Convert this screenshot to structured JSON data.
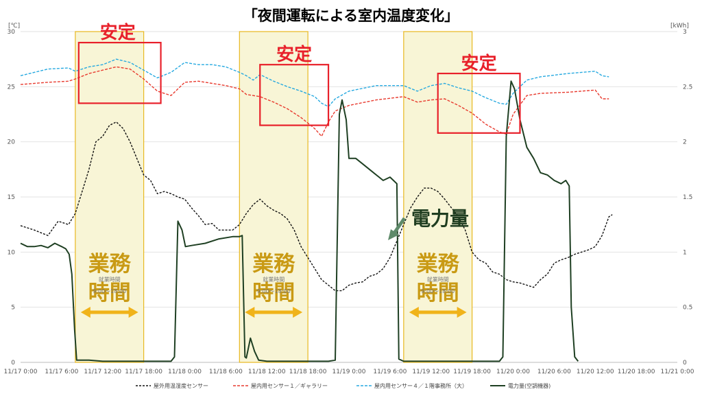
{
  "chart_data": {
    "type": "line",
    "title": "「夜間運転による室内温度変化」",
    "y_left_unit": "[℃]",
    "y_right_unit": "[kWh]",
    "y_left_range": [
      0,
      30
    ],
    "y_right_range": [
      0,
      3
    ],
    "y_left_ticks": [
      "0",
      "5",
      "10",
      "15",
      "20",
      "25",
      "30"
    ],
    "y_right_ticks": [
      "0",
      "0.5",
      "1",
      "1.5",
      "2",
      "2.5",
      "3"
    ],
    "x_range_hours": [
      0,
      96
    ],
    "x_ticks": [
      {
        "h": 0,
        "label": "11/17 0:00"
      },
      {
        "h": 6,
        "label": "11/17 6:00"
      },
      {
        "h": 12,
        "label": "11/17 12:00"
      },
      {
        "h": 18,
        "label": "11/17 18:00"
      },
      {
        "h": 24,
        "label": "11/18 0:00"
      },
      {
        "h": 30,
        "label": "11/18 6:00"
      },
      {
        "h": 36,
        "label": "11/18 12:00"
      },
      {
        "h": 42,
        "label": "11/18 18:00"
      },
      {
        "h": 48,
        "label": "11/19 0:00"
      },
      {
        "h": 54,
        "label": "11/19 6:00"
      },
      {
        "h": 60,
        "label": "11/19 12:00"
      },
      {
        "h": 66,
        "label": "11/19 18:00"
      },
      {
        "h": 72,
        "label": "11/20 0:00"
      },
      {
        "h": 78,
        "label": "11/20 6:00"
      },
      {
        "h": 84,
        "label": "11/20 12:00"
      },
      {
        "h": 90,
        "label": "11/20 18:00"
      },
      {
        "h": 96,
        "label": "11/21 0:00"
      }
    ],
    "business_hours": [
      [
        8,
        18
      ],
      [
        32,
        42
      ],
      [
        56,
        66
      ]
    ],
    "stable_boxes": [
      {
        "x": [
          8.5,
          20.5
        ],
        "y": [
          23.5,
          29.0
        ]
      },
      {
        "x": [
          35.0,
          45.0
        ],
        "y": [
          21.5,
          27.0
        ]
      },
      {
        "x": [
          61.0,
          73.0
        ],
        "y": [
          20.8,
          26.2
        ]
      }
    ],
    "series": [
      {
        "name": "屋外用温湿度センサー",
        "axis": "left",
        "color": "#111111",
        "style": "dotted",
        "points": [
          [
            0,
            12.4
          ],
          [
            2,
            12
          ],
          [
            4,
            11.5
          ],
          [
            5.5,
            12.8
          ],
          [
            7,
            12.5
          ],
          [
            8,
            13.5
          ],
          [
            9,
            15.5
          ],
          [
            10,
            17.5
          ],
          [
            11,
            20
          ],
          [
            12,
            20.5
          ],
          [
            13,
            21.5
          ],
          [
            14,
            21.8
          ],
          [
            15,
            21.2
          ],
          [
            16,
            20
          ],
          [
            17,
            18.5
          ],
          [
            18,
            17
          ],
          [
            19,
            16.5
          ],
          [
            20,
            15.3
          ],
          [
            21,
            15.5
          ],
          [
            22,
            15.3
          ],
          [
            23,
            15
          ],
          [
            24,
            14.8
          ],
          [
            25,
            14
          ],
          [
            26,
            13.3
          ],
          [
            27,
            12.5
          ],
          [
            28,
            12.6
          ],
          [
            29,
            12
          ],
          [
            30,
            12
          ],
          [
            31,
            12
          ],
          [
            32,
            12.5
          ],
          [
            33,
            13.5
          ],
          [
            34,
            14.3
          ],
          [
            35,
            14.8
          ],
          [
            36,
            14.2
          ],
          [
            37,
            13.8
          ],
          [
            38,
            13.5
          ],
          [
            39,
            13
          ],
          [
            40,
            12
          ],
          [
            41,
            10.5
          ],
          [
            42,
            9.5
          ],
          [
            43,
            8.5
          ],
          [
            44,
            7.5
          ],
          [
            45,
            7
          ],
          [
            46,
            6.5
          ],
          [
            47,
            6.5
          ],
          [
            48,
            7
          ],
          [
            49,
            7.2
          ],
          [
            50,
            7.3
          ],
          [
            51,
            7.8
          ],
          [
            52,
            8
          ],
          [
            53,
            8.5
          ],
          [
            54,
            9.5
          ],
          [
            55,
            11
          ],
          [
            56,
            12.5
          ],
          [
            57,
            14
          ],
          [
            58,
            15
          ],
          [
            59,
            15.8
          ],
          [
            60,
            15.8
          ],
          [
            61,
            15.5
          ],
          [
            62,
            14.8
          ],
          [
            63,
            14
          ],
          [
            64,
            13.2
          ],
          [
            65,
            12
          ],
          [
            66,
            10
          ],
          [
            67,
            9.3
          ],
          [
            68,
            9
          ],
          [
            69,
            8.2
          ],
          [
            70,
            8
          ],
          [
            71,
            7.5
          ],
          [
            72,
            7.3
          ],
          [
            73,
            7.2
          ],
          [
            74,
            7
          ],
          [
            75,
            6.8
          ],
          [
            76,
            7.5
          ],
          [
            77,
            8
          ],
          [
            78,
            9
          ],
          [
            79,
            9.3
          ],
          [
            80,
            9.5
          ],
          [
            81,
            9.8
          ],
          [
            82,
            10
          ],
          [
            83,
            10.2
          ],
          [
            84,
            10.5
          ],
          [
            85,
            11.5
          ],
          [
            86,
            13.2
          ],
          [
            86.5,
            13.4
          ]
        ]
      },
      {
        "name": "屋内用センサー１／ギャラリー",
        "axis": "left",
        "color": "#e83a2e",
        "style": "dashed",
        "points": [
          [
            0,
            25.2
          ],
          [
            4,
            25.4
          ],
          [
            7,
            25.5
          ],
          [
            8,
            25.7
          ],
          [
            10,
            26.2
          ],
          [
            12,
            26.5
          ],
          [
            14,
            26.8
          ],
          [
            16,
            26.6
          ],
          [
            18,
            25.7
          ],
          [
            20,
            24.6
          ],
          [
            22,
            24.2
          ],
          [
            24,
            25.4
          ],
          [
            26,
            25.5
          ],
          [
            28,
            25.3
          ],
          [
            30,
            25.1
          ],
          [
            32,
            24.8
          ],
          [
            33,
            24.3
          ],
          [
            35,
            24.1
          ],
          [
            37,
            23.6
          ],
          [
            39,
            23
          ],
          [
            41,
            22.2
          ],
          [
            43,
            21.2
          ],
          [
            44,
            20.5
          ],
          [
            45,
            21.8
          ],
          [
            46,
            22.8
          ],
          [
            48,
            23.3
          ],
          [
            52,
            23.8
          ],
          [
            56,
            24.1
          ],
          [
            58,
            23.6
          ],
          [
            60,
            23.8
          ],
          [
            62,
            23.9
          ],
          [
            64,
            23.3
          ],
          [
            66,
            22.6
          ],
          [
            68,
            21.6
          ],
          [
            70,
            20.9
          ],
          [
            71,
            20.7
          ],
          [
            72,
            22.5
          ],
          [
            74,
            24.2
          ],
          [
            76,
            24.4
          ],
          [
            80,
            24.5
          ],
          [
            84,
            24.7
          ],
          [
            85,
            23.9
          ],
          [
            86,
            23.9
          ]
        ]
      },
      {
        "name": "屋内用センサー４／１階事務所（大）",
        "axis": "left",
        "color": "#26a9e0",
        "style": "dashed",
        "points": [
          [
            0,
            26
          ],
          [
            4,
            26.6
          ],
          [
            7,
            26.7
          ],
          [
            8,
            26.4
          ],
          [
            10,
            26.8
          ],
          [
            12,
            27
          ],
          [
            14,
            27.5
          ],
          [
            16,
            27.2
          ],
          [
            18,
            26.5
          ],
          [
            20,
            25.8
          ],
          [
            22,
            26.3
          ],
          [
            24,
            27.2
          ],
          [
            26,
            27
          ],
          [
            28,
            27
          ],
          [
            30,
            26.8
          ],
          [
            32,
            26.3
          ],
          [
            33,
            26
          ],
          [
            34,
            25.6
          ],
          [
            35,
            26.1
          ],
          [
            37,
            25.5
          ],
          [
            39,
            25
          ],
          [
            41,
            24.6
          ],
          [
            43,
            24.1
          ],
          [
            44,
            23.5
          ],
          [
            45,
            23.2
          ],
          [
            46,
            23.9
          ],
          [
            48,
            24.6
          ],
          [
            52,
            25.1
          ],
          [
            56,
            25.1
          ],
          [
            58,
            24.6
          ],
          [
            60,
            25.1
          ],
          [
            62,
            25.3
          ],
          [
            64,
            24.9
          ],
          [
            66,
            24.6
          ],
          [
            68,
            24
          ],
          [
            70,
            23.5
          ],
          [
            71,
            23.4
          ],
          [
            72,
            24.4
          ],
          [
            74,
            25.6
          ],
          [
            76,
            25.9
          ],
          [
            80,
            26.2
          ],
          [
            84,
            26.4
          ],
          [
            85,
            26
          ],
          [
            86,
            25.9
          ]
        ]
      },
      {
        "name": "電力量(空調機器)",
        "axis": "right",
        "color": "#1e3f22",
        "style": "solid",
        "points": [
          [
            0,
            1.08
          ],
          [
            1,
            1.05
          ],
          [
            2,
            1.05
          ],
          [
            3,
            1.06
          ],
          [
            4,
            1.04
          ],
          [
            5,
            1.08
          ],
          [
            6,
            1.05
          ],
          [
            6.6,
            1.03
          ],
          [
            7.1,
            0.98
          ],
          [
            7.5,
            0.8
          ],
          [
            7.9,
            0.3
          ],
          [
            8.2,
            0.02
          ],
          [
            10,
            0.02
          ],
          [
            12,
            0.01
          ],
          [
            14,
            0.01
          ],
          [
            16,
            0.01
          ],
          [
            18,
            0.01
          ],
          [
            20,
            0.01
          ],
          [
            21,
            0.01
          ],
          [
            22,
            0.01
          ],
          [
            22.5,
            0.05
          ],
          [
            23,
            1.28
          ],
          [
            23.6,
            1.2
          ],
          [
            24.1,
            1.05
          ],
          [
            25,
            1.06
          ],
          [
            27,
            1.08
          ],
          [
            29,
            1.12
          ],
          [
            31,
            1.14
          ],
          [
            32,
            1.14
          ],
          [
            32.4,
            1.15
          ],
          [
            32.8,
            0.05
          ],
          [
            33,
            0.04
          ],
          [
            33.6,
            0.22
          ],
          [
            34.2,
            0.1
          ],
          [
            34.8,
            0.02
          ],
          [
            36,
            0.01
          ],
          [
            38,
            0.01
          ],
          [
            40,
            0.01
          ],
          [
            42,
            0.01
          ],
          [
            44,
            0.01
          ],
          [
            45,
            0.01
          ],
          [
            46,
            0.02
          ],
          [
            46.6,
            2.25
          ],
          [
            47,
            2.38
          ],
          [
            47.6,
            2.2
          ],
          [
            48,
            1.85
          ],
          [
            49,
            1.85
          ],
          [
            50,
            1.8
          ],
          [
            51,
            1.75
          ],
          [
            52,
            1.7
          ],
          [
            53,
            1.65
          ],
          [
            54,
            1.68
          ],
          [
            54.5,
            1.65
          ],
          [
            55,
            1.62
          ],
          [
            55.3,
            0.03
          ],
          [
            56,
            0.01
          ],
          [
            58,
            0.01
          ],
          [
            60,
            0.01
          ],
          [
            62,
            0.01
          ],
          [
            64,
            0.01
          ],
          [
            66,
            0.01
          ],
          [
            68,
            0.01
          ],
          [
            70,
            0.01
          ],
          [
            70.5,
            0.05
          ],
          [
            71,
            2.05
          ],
          [
            71.7,
            2.55
          ],
          [
            72.2,
            2.48
          ],
          [
            73,
            2.2
          ],
          [
            74,
            1.95
          ],
          [
            75,
            1.85
          ],
          [
            76,
            1.72
          ],
          [
            77,
            1.7
          ],
          [
            78,
            1.65
          ],
          [
            79,
            1.62
          ],
          [
            79.7,
            1.65
          ],
          [
            80.2,
            1.6
          ],
          [
            80.5,
            0.5
          ],
          [
            81,
            0.05
          ],
          [
            81.5,
            0.01
          ]
        ]
      }
    ],
    "annotations": {
      "stable_label": "安定",
      "work_label_1": "業務",
      "work_label_2": "時間",
      "work_sub_1": "就業時間",
      "work_sub_2": "9:00～18:00",
      "power_label": "電力量"
    }
  }
}
